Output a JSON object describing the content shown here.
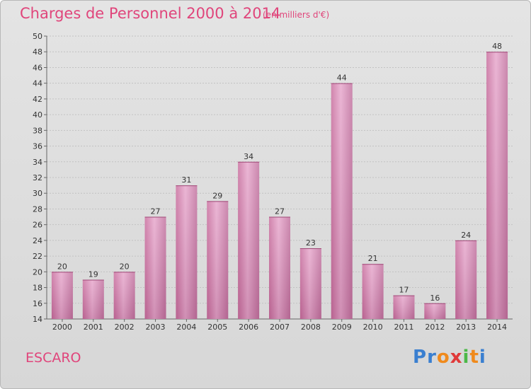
{
  "header": {
    "title": "Charges de Personnel 2000 à 2014",
    "subtitle": "(en milliers d'€)"
  },
  "footer": {
    "commune": "ESCARO",
    "logo": [
      "P",
      "r",
      "o",
      "x",
      "i",
      "t",
      "i"
    ]
  },
  "colors": {
    "title": "#e0457b",
    "bar": "#d98ab8",
    "logo": [
      "#3a7fd0",
      "#3a7fd0",
      "#f08a1c",
      "#e03a3a",
      "#4cb848",
      "#f08a1c",
      "#3a7fd0"
    ]
  },
  "chart_data": {
    "type": "bar",
    "title": "Charges de Personnel 2000 à 2014",
    "subtitle": "(en milliers d'€)",
    "categories": [
      "2000",
      "2001",
      "2002",
      "2003",
      "2004",
      "2005",
      "2006",
      "2007",
      "2008",
      "2009",
      "2010",
      "2011",
      "2012",
      "2013",
      "2014"
    ],
    "values": [
      20,
      19,
      20,
      27,
      31,
      29,
      34,
      27,
      23,
      44,
      21,
      17,
      16,
      24,
      48
    ],
    "xlabel": "",
    "ylabel": "",
    "ylim": [
      14,
      50
    ],
    "yticks": [
      14,
      16,
      18,
      20,
      22,
      24,
      26,
      28,
      30,
      32,
      34,
      36,
      38,
      40,
      42,
      44,
      46,
      48,
      50
    ],
    "grid": true,
    "data_labels": true
  }
}
